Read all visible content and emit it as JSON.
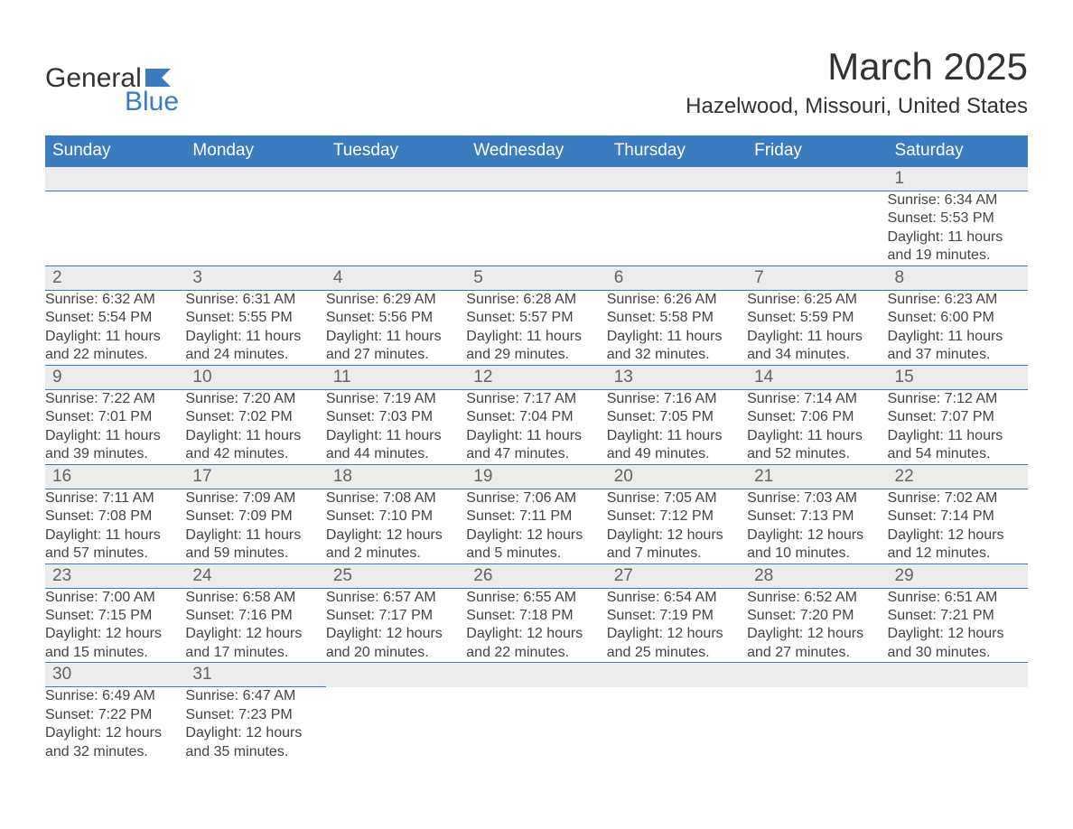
{
  "logo": {
    "word1": "General",
    "word2": "Blue",
    "flag_color": "#3b7bbf"
  },
  "title": "March 2025",
  "location": "Hazelwood, Missouri, United States",
  "colors": {
    "header_bg": "#3b7bbf",
    "header_text": "#ffffff",
    "daynum_bg": "#ececec",
    "daynum_text": "#636363",
    "body_text": "#444444",
    "rule": "#3b7bbf",
    "page_bg": "#ffffff"
  },
  "typography": {
    "title_fontsize": 42,
    "location_fontsize": 24,
    "header_fontsize": 19,
    "daynum_fontsize": 19,
    "cell_fontsize": 16
  },
  "day_headers": [
    "Sunday",
    "Monday",
    "Tuesday",
    "Wednesday",
    "Thursday",
    "Friday",
    "Saturday"
  ],
  "weeks": [
    [
      null,
      null,
      null,
      null,
      null,
      null,
      {
        "n": "1",
        "sunrise": "Sunrise: 6:34 AM",
        "sunset": "Sunset: 5:53 PM",
        "day1": "Daylight: 11 hours",
        "day2": "and 19 minutes."
      }
    ],
    [
      {
        "n": "2",
        "sunrise": "Sunrise: 6:32 AM",
        "sunset": "Sunset: 5:54 PM",
        "day1": "Daylight: 11 hours",
        "day2": "and 22 minutes."
      },
      {
        "n": "3",
        "sunrise": "Sunrise: 6:31 AM",
        "sunset": "Sunset: 5:55 PM",
        "day1": "Daylight: 11 hours",
        "day2": "and 24 minutes."
      },
      {
        "n": "4",
        "sunrise": "Sunrise: 6:29 AM",
        "sunset": "Sunset: 5:56 PM",
        "day1": "Daylight: 11 hours",
        "day2": "and 27 minutes."
      },
      {
        "n": "5",
        "sunrise": "Sunrise: 6:28 AM",
        "sunset": "Sunset: 5:57 PM",
        "day1": "Daylight: 11 hours",
        "day2": "and 29 minutes."
      },
      {
        "n": "6",
        "sunrise": "Sunrise: 6:26 AM",
        "sunset": "Sunset: 5:58 PM",
        "day1": "Daylight: 11 hours",
        "day2": "and 32 minutes."
      },
      {
        "n": "7",
        "sunrise": "Sunrise: 6:25 AM",
        "sunset": "Sunset: 5:59 PM",
        "day1": "Daylight: 11 hours",
        "day2": "and 34 minutes."
      },
      {
        "n": "8",
        "sunrise": "Sunrise: 6:23 AM",
        "sunset": "Sunset: 6:00 PM",
        "day1": "Daylight: 11 hours",
        "day2": "and 37 minutes."
      }
    ],
    [
      {
        "n": "9",
        "sunrise": "Sunrise: 7:22 AM",
        "sunset": "Sunset: 7:01 PM",
        "day1": "Daylight: 11 hours",
        "day2": "and 39 minutes."
      },
      {
        "n": "10",
        "sunrise": "Sunrise: 7:20 AM",
        "sunset": "Sunset: 7:02 PM",
        "day1": "Daylight: 11 hours",
        "day2": "and 42 minutes."
      },
      {
        "n": "11",
        "sunrise": "Sunrise: 7:19 AM",
        "sunset": "Sunset: 7:03 PM",
        "day1": "Daylight: 11 hours",
        "day2": "and 44 minutes."
      },
      {
        "n": "12",
        "sunrise": "Sunrise: 7:17 AM",
        "sunset": "Sunset: 7:04 PM",
        "day1": "Daylight: 11 hours",
        "day2": "and 47 minutes."
      },
      {
        "n": "13",
        "sunrise": "Sunrise: 7:16 AM",
        "sunset": "Sunset: 7:05 PM",
        "day1": "Daylight: 11 hours",
        "day2": "and 49 minutes."
      },
      {
        "n": "14",
        "sunrise": "Sunrise: 7:14 AM",
        "sunset": "Sunset: 7:06 PM",
        "day1": "Daylight: 11 hours",
        "day2": "and 52 minutes."
      },
      {
        "n": "15",
        "sunrise": "Sunrise: 7:12 AM",
        "sunset": "Sunset: 7:07 PM",
        "day1": "Daylight: 11 hours",
        "day2": "and 54 minutes."
      }
    ],
    [
      {
        "n": "16",
        "sunrise": "Sunrise: 7:11 AM",
        "sunset": "Sunset: 7:08 PM",
        "day1": "Daylight: 11 hours",
        "day2": "and 57 minutes."
      },
      {
        "n": "17",
        "sunrise": "Sunrise: 7:09 AM",
        "sunset": "Sunset: 7:09 PM",
        "day1": "Daylight: 11 hours",
        "day2": "and 59 minutes."
      },
      {
        "n": "18",
        "sunrise": "Sunrise: 7:08 AM",
        "sunset": "Sunset: 7:10 PM",
        "day1": "Daylight: 12 hours",
        "day2": "and 2 minutes."
      },
      {
        "n": "19",
        "sunrise": "Sunrise: 7:06 AM",
        "sunset": "Sunset: 7:11 PM",
        "day1": "Daylight: 12 hours",
        "day2": "and 5 minutes."
      },
      {
        "n": "20",
        "sunrise": "Sunrise: 7:05 AM",
        "sunset": "Sunset: 7:12 PM",
        "day1": "Daylight: 12 hours",
        "day2": "and 7 minutes."
      },
      {
        "n": "21",
        "sunrise": "Sunrise: 7:03 AM",
        "sunset": "Sunset: 7:13 PM",
        "day1": "Daylight: 12 hours",
        "day2": "and 10 minutes."
      },
      {
        "n": "22",
        "sunrise": "Sunrise: 7:02 AM",
        "sunset": "Sunset: 7:14 PM",
        "day1": "Daylight: 12 hours",
        "day2": "and 12 minutes."
      }
    ],
    [
      {
        "n": "23",
        "sunrise": "Sunrise: 7:00 AM",
        "sunset": "Sunset: 7:15 PM",
        "day1": "Daylight: 12 hours",
        "day2": "and 15 minutes."
      },
      {
        "n": "24",
        "sunrise": "Sunrise: 6:58 AM",
        "sunset": "Sunset: 7:16 PM",
        "day1": "Daylight: 12 hours",
        "day2": "and 17 minutes."
      },
      {
        "n": "25",
        "sunrise": "Sunrise: 6:57 AM",
        "sunset": "Sunset: 7:17 PM",
        "day1": "Daylight: 12 hours",
        "day2": "and 20 minutes."
      },
      {
        "n": "26",
        "sunrise": "Sunrise: 6:55 AM",
        "sunset": "Sunset: 7:18 PM",
        "day1": "Daylight: 12 hours",
        "day2": "and 22 minutes."
      },
      {
        "n": "27",
        "sunrise": "Sunrise: 6:54 AM",
        "sunset": "Sunset: 7:19 PM",
        "day1": "Daylight: 12 hours",
        "day2": "and 25 minutes."
      },
      {
        "n": "28",
        "sunrise": "Sunrise: 6:52 AM",
        "sunset": "Sunset: 7:20 PM",
        "day1": "Daylight: 12 hours",
        "day2": "and 27 minutes."
      },
      {
        "n": "29",
        "sunrise": "Sunrise: 6:51 AM",
        "sunset": "Sunset: 7:21 PM",
        "day1": "Daylight: 12 hours",
        "day2": "and 30 minutes."
      }
    ],
    [
      {
        "n": "30",
        "sunrise": "Sunrise: 6:49 AM",
        "sunset": "Sunset: 7:22 PM",
        "day1": "Daylight: 12 hours",
        "day2": "and 32 minutes."
      },
      {
        "n": "31",
        "sunrise": "Sunrise: 6:47 AM",
        "sunset": "Sunset: 7:23 PM",
        "day1": "Daylight: 12 hours",
        "day2": "and 35 minutes."
      },
      null,
      null,
      null,
      null,
      null
    ]
  ]
}
